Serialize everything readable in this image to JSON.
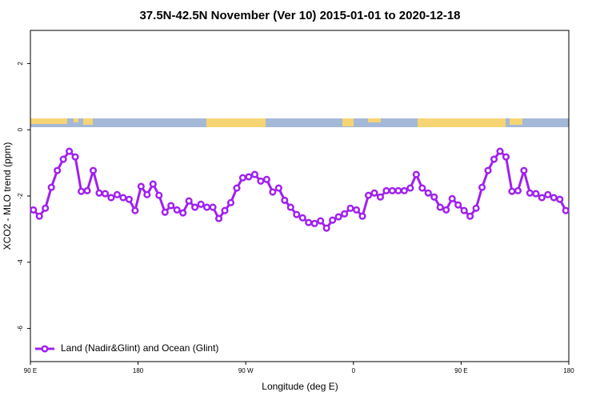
{
  "chart_data": {
    "type": "line",
    "title": "37.5N-42.5N November (Ver 10)   2015-01-01 to 2020-12-18",
    "xlabel": "Longitude (deg E)",
    "ylabel": "XCO2 - MLO trend (ppm)",
    "xlim": [
      90,
      540
    ],
    "ylim": [
      -7,
      3
    ],
    "xticks": [
      {
        "value": 90,
        "label": "90 E"
      },
      180,
      {
        "value": 270,
        "label": "90 W"
      },
      {
        "value": 360,
        "label": "0"
      },
      {
        "value": 450,
        "label": "90 E"
      },
      {
        "value": 540,
        "label": "180"
      }
    ],
    "yticks": [
      2,
      0,
      -2,
      -4,
      -6
    ],
    "legend": "bottom-left",
    "x": [
      92.5,
      97.5,
      102.5,
      107.5,
      112.5,
      117.5,
      122.5,
      127.5,
      132.5,
      137.5,
      142.5,
      147.5,
      152.5,
      157.5,
      162.5,
      167.5,
      172.5,
      177.5,
      182.5,
      187.5,
      192.5,
      197.5,
      202.5,
      207.5,
      212.5,
      217.5,
      222.5,
      227.5,
      232.5,
      237.5,
      242.5,
      247.5,
      252.5,
      257.5,
      262.5,
      267.5,
      272.5,
      277.5,
      282.5,
      287.5,
      292.5,
      297.5,
      302.5,
      307.5,
      312.5,
      317.5,
      322.5,
      327.5,
      332.5,
      337.5,
      342.5,
      347.5,
      352.5,
      357.5,
      362.5,
      367.5,
      372.5,
      377.5,
      382.5,
      387.5,
      392.5,
      397.5,
      402.5,
      407.5,
      412.5,
      417.5,
      422.5,
      427.5,
      432.5,
      437.5,
      442.5,
      447.5,
      452.5,
      457.5,
      462.5,
      467.5,
      472.5,
      477.5,
      482.5,
      487.5,
      492.5,
      497.5,
      502.5,
      507.5,
      512.5,
      517.5,
      522.5,
      527.5,
      532.5,
      537.5
    ],
    "series": [
      {
        "name": "Land (Nadir&Glint) and Ocean (Glint)",
        "color": "#a020f0",
        "values": [
          -2.42,
          -2.61,
          -2.37,
          -1.74,
          -1.23,
          -0.89,
          -0.65,
          -0.82,
          -1.86,
          -1.84,
          -1.23,
          -1.91,
          -1.93,
          -2.05,
          -1.96,
          -2.05,
          -2.1,
          -2.44,
          -1.71,
          -1.96,
          -1.64,
          -1.98,
          -2.49,
          -2.29,
          -2.42,
          -2.51,
          -2.15,
          -2.34,
          -2.25,
          -2.34,
          -2.34,
          -2.68,
          -2.44,
          -2.2,
          -1.76,
          -1.45,
          -1.42,
          -1.35,
          -1.55,
          -1.5,
          -1.88,
          -1.76,
          -2.13,
          -2.34,
          -2.56,
          -2.66,
          -2.8,
          -2.83,
          -2.75,
          -2.97,
          -2.73,
          -2.63,
          -2.54,
          -2.37,
          -2.42,
          -2.61,
          -1.98,
          -1.91,
          -2.03,
          -1.84,
          -1.84,
          -1.84,
          -1.84,
          -1.76,
          -1.35,
          -1.76,
          -1.91,
          -2.03,
          -2.34,
          -2.42,
          -2.08,
          -2.27,
          -2.44,
          -2.61,
          -2.37,
          -1.74,
          -1.23,
          -0.89,
          -0.65,
          -0.82,
          -1.86,
          -1.84,
          -1.23,
          -1.91,
          -1.93,
          -2.05,
          -1.96,
          -2.05,
          -2.1,
          -2.44
        ]
      }
    ]
  }
}
